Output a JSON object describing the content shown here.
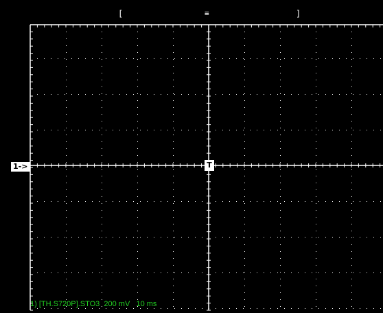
{
  "colors": {
    "background": "#000000",
    "grid": "#ffffff",
    "status_text": "#22d122"
  },
  "grid": {
    "divisions_x": 10,
    "divisions_y": 8
  },
  "markers": {
    "cursor_left": "[",
    "trigger_position": "ꟷ",
    "cursor_right": "]"
  },
  "channel": {
    "reference_label": "1->",
    "trigger_label": "T"
  },
  "status": {
    "text": "1) [TH.S720P].STO3  200 mV   10 ms"
  }
}
